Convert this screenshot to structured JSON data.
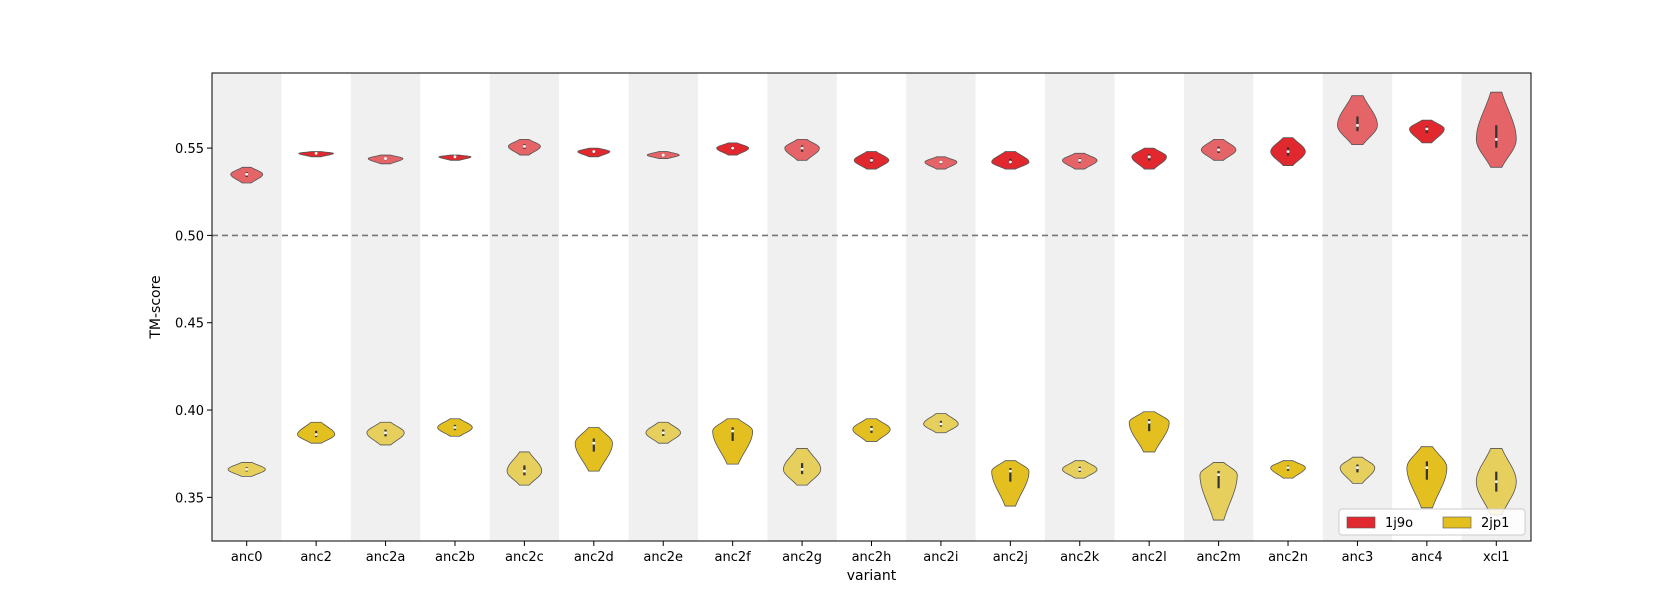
{
  "chart_data": {
    "type": "violin",
    "xlabel": "variant",
    "ylabel": "TM-score",
    "ylim": [
      0.325,
      0.593
    ],
    "yticks": [
      0.35,
      0.4,
      0.45,
      0.5,
      0.55
    ],
    "ytick_labels": [
      "0.35",
      "0.40",
      "0.45",
      "0.50",
      "0.55"
    ],
    "reference_line": {
      "y": 0.5,
      "style": "dashed",
      "color": "#777777"
    },
    "alternating_background": true,
    "legend": {
      "placement": "lower-right",
      "columns": 2
    },
    "categories": [
      "anc0",
      "anc2",
      "anc2a",
      "anc2b",
      "anc2c",
      "anc2d",
      "anc2e",
      "anc2f",
      "anc2g",
      "anc2h",
      "anc2i",
      "anc2j",
      "anc2k",
      "anc2l",
      "anc2m",
      "anc2n",
      "anc3",
      "anc4",
      "xcl1"
    ],
    "series": [
      {
        "name": "1j9o",
        "color": "#e0282e",
        "values": [
          {
            "center": 0.535,
            "min": 0.53,
            "max": 0.539,
            "width": 0.24,
            "alpha": 0.7
          },
          {
            "center": 0.547,
            "min": 0.545,
            "max": 0.548,
            "width": 0.26,
            "alpha": 1.0
          },
          {
            "center": 0.544,
            "min": 0.541,
            "max": 0.546,
            "width": 0.26,
            "alpha": 0.7
          },
          {
            "center": 0.545,
            "min": 0.543,
            "max": 0.546,
            "width": 0.24,
            "alpha": 1.0
          },
          {
            "center": 0.551,
            "min": 0.546,
            "max": 0.555,
            "width": 0.24,
            "alpha": 0.7
          },
          {
            "center": 0.548,
            "min": 0.545,
            "max": 0.55,
            "width": 0.24,
            "alpha": 1.0
          },
          {
            "center": 0.546,
            "min": 0.544,
            "max": 0.548,
            "width": 0.24,
            "alpha": 0.7
          },
          {
            "center": 0.55,
            "min": 0.546,
            "max": 0.553,
            "width": 0.24,
            "alpha": 1.0
          },
          {
            "center": 0.55,
            "min": 0.543,
            "max": 0.555,
            "width": 0.26,
            "alpha": 0.7
          },
          {
            "center": 0.543,
            "min": 0.538,
            "max": 0.548,
            "width": 0.26,
            "alpha": 1.0
          },
          {
            "center": 0.542,
            "min": 0.538,
            "max": 0.545,
            "width": 0.24,
            "alpha": 0.7
          },
          {
            "center": 0.542,
            "min": 0.538,
            "max": 0.548,
            "width": 0.28,
            "alpha": 1.0
          },
          {
            "center": 0.543,
            "min": 0.538,
            "max": 0.547,
            "width": 0.26,
            "alpha": 0.7
          },
          {
            "center": 0.545,
            "min": 0.538,
            "max": 0.55,
            "width": 0.26,
            "alpha": 1.0
          },
          {
            "center": 0.549,
            "min": 0.543,
            "max": 0.555,
            "width": 0.26,
            "alpha": 0.7
          },
          {
            "center": 0.548,
            "min": 0.54,
            "max": 0.556,
            "width": 0.26,
            "alpha": 1.0
          },
          {
            "center": 0.563,
            "min": 0.552,
            "max": 0.58,
            "width": 0.3,
            "alpha": 0.7
          },
          {
            "center": 0.561,
            "min": 0.553,
            "max": 0.566,
            "width": 0.26,
            "alpha": 1.0
          },
          {
            "center": 0.555,
            "min": 0.539,
            "max": 0.582,
            "width": 0.3,
            "alpha": 0.7
          }
        ]
      },
      {
        "name": "2jp1",
        "color": "#e3c020",
        "values": [
          {
            "center": 0.366,
            "min": 0.362,
            "max": 0.37,
            "width": 0.28,
            "alpha": 0.7
          },
          {
            "center": 0.386,
            "min": 0.381,
            "max": 0.393,
            "width": 0.28,
            "alpha": 1.0
          },
          {
            "center": 0.387,
            "min": 0.38,
            "max": 0.393,
            "width": 0.28,
            "alpha": 0.7
          },
          {
            "center": 0.39,
            "min": 0.385,
            "max": 0.395,
            "width": 0.26,
            "alpha": 1.0
          },
          {
            "center": 0.365,
            "min": 0.357,
            "max": 0.376,
            "width": 0.26,
            "alpha": 0.7
          },
          {
            "center": 0.381,
            "min": 0.365,
            "max": 0.39,
            "width": 0.28,
            "alpha": 1.0
          },
          {
            "center": 0.387,
            "min": 0.381,
            "max": 0.393,
            "width": 0.26,
            "alpha": 0.7
          },
          {
            "center": 0.388,
            "min": 0.369,
            "max": 0.395,
            "width": 0.3,
            "alpha": 1.0
          },
          {
            "center": 0.366,
            "min": 0.357,
            "max": 0.378,
            "width": 0.28,
            "alpha": 0.7
          },
          {
            "center": 0.389,
            "min": 0.382,
            "max": 0.395,
            "width": 0.28,
            "alpha": 1.0
          },
          {
            "center": 0.392,
            "min": 0.387,
            "max": 0.398,
            "width": 0.26,
            "alpha": 0.7
          },
          {
            "center": 0.365,
            "min": 0.345,
            "max": 0.371,
            "width": 0.28,
            "alpha": 1.0
          },
          {
            "center": 0.366,
            "min": 0.361,
            "max": 0.371,
            "width": 0.26,
            "alpha": 0.7
          },
          {
            "center": 0.393,
            "min": 0.376,
            "max": 0.399,
            "width": 0.3,
            "alpha": 1.0
          },
          {
            "center": 0.363,
            "min": 0.337,
            "max": 0.37,
            "width": 0.28,
            "alpha": 0.7
          },
          {
            "center": 0.367,
            "min": 0.361,
            "max": 0.371,
            "width": 0.26,
            "alpha": 1.0
          },
          {
            "center": 0.367,
            "min": 0.358,
            "max": 0.373,
            "width": 0.26,
            "alpha": 0.7
          },
          {
            "center": 0.367,
            "min": 0.344,
            "max": 0.379,
            "width": 0.3,
            "alpha": 1.0
          },
          {
            "center": 0.359,
            "min": 0.34,
            "max": 0.378,
            "width": 0.3,
            "alpha": 0.7
          }
        ]
      }
    ]
  }
}
